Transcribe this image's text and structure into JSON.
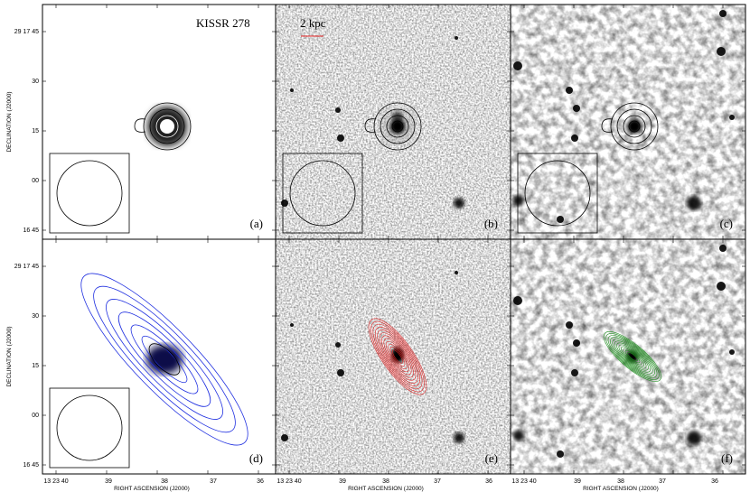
{
  "title": "KISSR 278",
  "scale_bar": "2 kpc",
  "panels": [
    {
      "label": "(a)"
    },
    {
      "label": "(b)"
    },
    {
      "label": "(c)"
    },
    {
      "label": "(d)"
    },
    {
      "label": "(e)"
    },
    {
      "label": "(f)"
    }
  ],
  "y_axis": {
    "label": "DECLINATION (J2000)",
    "ticks": [
      "29 17 45",
      "30",
      "15",
      "00",
      "16 45"
    ]
  },
  "x_axis": {
    "label": "RIGHT ASCENSION (J2000)",
    "ticks": [
      "13 23 40",
      "39",
      "38",
      "37",
      "36"
    ]
  }
}
